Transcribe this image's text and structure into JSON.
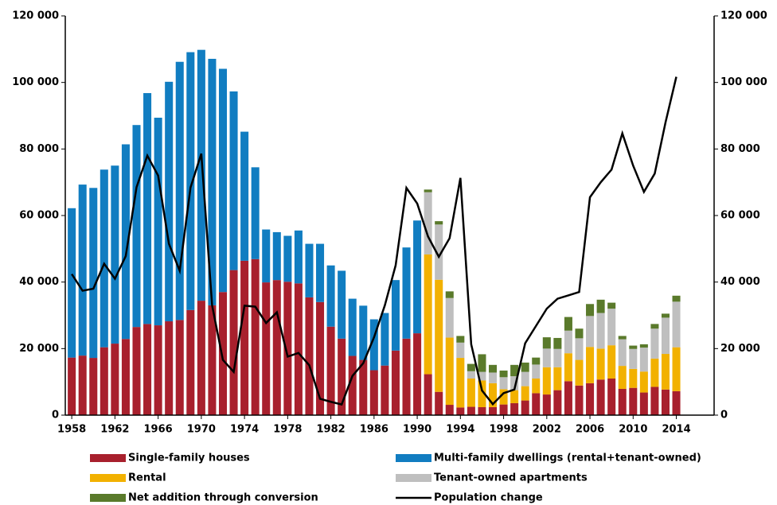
{
  "chart_data": {
    "type": "bar",
    "stacked": true,
    "x": [
      1958,
      1959,
      1960,
      1961,
      1962,
      1963,
      1964,
      1965,
      1966,
      1967,
      1968,
      1969,
      1970,
      1971,
      1972,
      1973,
      1974,
      1975,
      1976,
      1977,
      1978,
      1979,
      1980,
      1981,
      1982,
      1983,
      1984,
      1985,
      1986,
      1987,
      1988,
      1989,
      1990,
      1991,
      1992,
      1993,
      1994,
      1995,
      1996,
      1997,
      1998,
      1999,
      2000,
      2001,
      2002,
      2003,
      2004,
      2005,
      2006,
      2007,
      2008,
      2009,
      2010,
      2011,
      2012,
      2013,
      2014
    ],
    "xlim": [
      1957.4,
      2017.5
    ],
    "xticks": [
      1958,
      1962,
      1966,
      1970,
      1974,
      1978,
      1982,
      1986,
      1990,
      1994,
      1998,
      2002,
      2006,
      2010,
      2014
    ],
    "ylim": [
      0,
      120000
    ],
    "yticks": [
      0,
      {
        "value": 20000,
        "label": "20 000"
      },
      {
        "value": 40000,
        "label": "40 000"
      },
      {
        "value": 60000,
        "label": "60 000"
      },
      {
        "value": 80000,
        "label": "80 000"
      },
      {
        "value": 100000,
        "label": "100 000"
      },
      {
        "value": 120000,
        "label": "120 000"
      }
    ],
    "y2lim": [
      0,
      120000
    ],
    "y2ticks": [
      0,
      {
        "value": 20000,
        "label": "20 000"
      },
      {
        "value": 40000,
        "label": "40 000"
      },
      {
        "value": 60000,
        "label": "60 000"
      },
      {
        "value": 80000,
        "label": "80 000"
      },
      {
        "value": 100000,
        "label": "100 000"
      },
      {
        "value": 120000,
        "label": "120 000"
      }
    ],
    "legend": "bottom",
    "series": [
      {
        "name": "Single-family houses",
        "color": "#a8202d",
        "values": [
          17300,
          17900,
          17200,
          20400,
          21500,
          22900,
          26500,
          27400,
          27000,
          28200,
          28600,
          31600,
          34400,
          33000,
          37000,
          43600,
          46400,
          46900,
          39900,
          40600,
          40100,
          39600,
          35400,
          34000,
          26600,
          23000,
          17800,
          16600,
          13500,
          14900,
          19400,
          23000,
          24600,
          12300,
          7000,
          3100,
          2300,
          2500,
          2400,
          2400,
          3200,
          3600,
          4400,
          6600,
          6200,
          7500,
          10200,
          8900,
          9600,
          10700,
          11000,
          7900,
          8200,
          6800,
          8500,
          7700,
          7200
        ]
      },
      {
        "name": "Multi-family dwellings (rental+tenant-owned)",
        "color": "#117dc1",
        "values": [
          44900,
          51400,
          51100,
          53400,
          53500,
          58500,
          60700,
          69400,
          62400,
          72000,
          77600,
          77500,
          75400,
          74100,
          67100,
          53700,
          38800,
          27600,
          15900,
          14400,
          13800,
          15900,
          16100,
          17500,
          18400,
          20400,
          17200,
          16300,
          15300,
          15800,
          21200,
          27400,
          33900,
          null,
          null,
          null,
          null,
          null,
          null,
          null,
          null,
          null,
          null,
          null,
          null,
          null,
          null,
          null,
          null,
          null,
          null,
          null,
          null,
          null,
          null,
          null,
          null
        ]
      },
      {
        "name": "Rental",
        "color": "#f2b100",
        "values": [
          null,
          null,
          null,
          null,
          null,
          null,
          null,
          null,
          null,
          null,
          null,
          null,
          null,
          null,
          null,
          null,
          null,
          null,
          null,
          null,
          null,
          null,
          null,
          null,
          null,
          null,
          null,
          null,
          null,
          null,
          null,
          null,
          null,
          36000,
          33700,
          20200,
          14900,
          8500,
          8000,
          7200,
          4600,
          3900,
          4300,
          4400,
          8200,
          6900,
          8400,
          7700,
          10900,
          9300,
          10000,
          6900,
          5700,
          6300,
          8500,
          10700,
          13200
        ]
      },
      {
        "name": "Tenant-owned apartments",
        "color": "#bfbfbf",
        "values": [
          null,
          null,
          null,
          null,
          null,
          null,
          null,
          null,
          null,
          null,
          null,
          null,
          null,
          null,
          null,
          null,
          null,
          null,
          null,
          null,
          null,
          null,
          null,
          null,
          null,
          null,
          null,
          null,
          null,
          null,
          null,
          null,
          null,
          18700,
          16600,
          11900,
          4600,
          2200,
          2600,
          3200,
          3600,
          4200,
          4300,
          4200,
          5600,
          5500,
          6800,
          6500,
          9300,
          10700,
          11000,
          8000,
          6000,
          7200,
          9000,
          10900,
          13700
        ]
      },
      {
        "name": "Net addition through conversion",
        "color": "#5a7a2b",
        "values": [
          null,
          null,
          null,
          null,
          null,
          null,
          null,
          null,
          null,
          null,
          null,
          null,
          null,
          null,
          null,
          null,
          null,
          null,
          null,
          null,
          null,
          null,
          null,
          null,
          null,
          null,
          null,
          null,
          null,
          null,
          null,
          null,
          null,
          800,
          1000,
          2000,
          2000,
          2200,
          5300,
          2300,
          2000,
          3400,
          2800,
          2100,
          3400,
          3300,
          4100,
          2900,
          3600,
          4000,
          1800,
          1000,
          1000,
          1000,
          1400,
          1200,
          1800
        ]
      },
      {
        "name": "Population change",
        "color": "#000000",
        "type": "line",
        "axis": "y2",
        "values": [
          42400,
          37400,
          38000,
          45500,
          41000,
          47800,
          68500,
          78000,
          72000,
          51500,
          43400,
          68400,
          78600,
          33000,
          16600,
          13000,
          32900,
          32600,
          27700,
          30900,
          17600,
          18700,
          15000,
          4900,
          4000,
          3200,
          11800,
          15600,
          23400,
          33000,
          45000,
          68300,
          63600,
          53700,
          47600,
          53200,
          71300,
          21300,
          7400,
          3300,
          6600,
          7700,
          21600,
          26800,
          32000,
          35000,
          36000,
          37000,
          65500,
          70000,
          73800,
          84700,
          75000,
          67100,
          72600,
          88000,
          101700
        ]
      }
    ]
  }
}
